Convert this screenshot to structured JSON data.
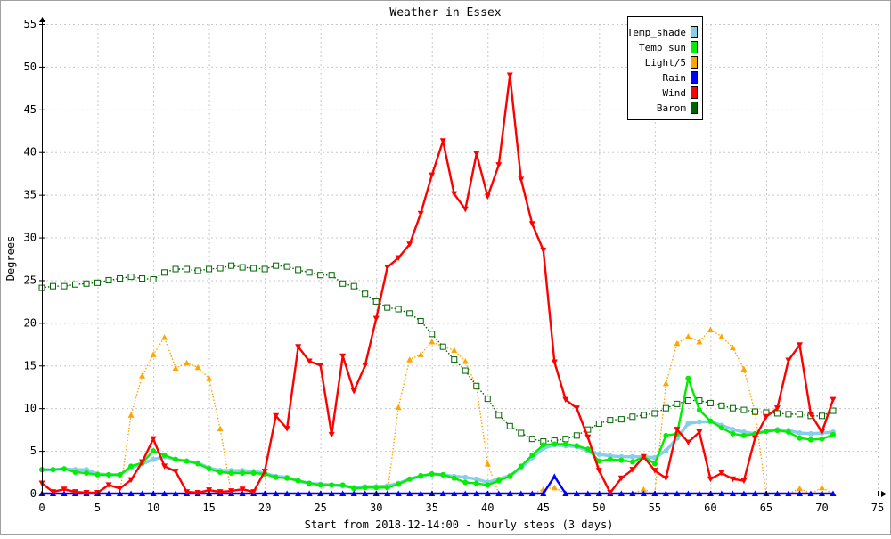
{
  "chart_data": {
    "type": "line",
    "title": "Weather in Essex",
    "xlabel": "Start from 2018-12-14:00 - hourly steps (3 days)",
    "ylabel": "Degrees",
    "xlim": [
      0,
      75
    ],
    "ylim": [
      0,
      55
    ],
    "xticks": [
      0,
      5,
      10,
      15,
      20,
      25,
      30,
      35,
      40,
      45,
      50,
      55,
      60,
      65,
      70,
      75
    ],
    "yticks": [
      0,
      5,
      10,
      15,
      20,
      25,
      30,
      35,
      40,
      45,
      50,
      55
    ],
    "grid": true,
    "legend_position": "top-right",
    "series": [
      {
        "name": "Temp_shade",
        "color": "#87ceeb",
        "marker": "circle",
        "line": "solid",
        "values": [
          2.8,
          2.8,
          2.9,
          2.8,
          2.8,
          2.3,
          2.2,
          2.2,
          3.0,
          3.5,
          4.0,
          4.3,
          4.0,
          3.8,
          3.6,
          3.0,
          2.7,
          2.7,
          2.7,
          2.6,
          2.4,
          2.0,
          1.9,
          1.5,
          1.2,
          1.1,
          1.0,
          0.9,
          0.7,
          0.8,
          0.8,
          0.9,
          1.2,
          1.7,
          2.0,
          2.3,
          2.2,
          2.0,
          1.9,
          1.7,
          1.3,
          1.7,
          2.1,
          3.0,
          4.2,
          5.3,
          5.7,
          5.6,
          5.5,
          5.0,
          4.6,
          4.4,
          4.3,
          4.3,
          4.3,
          4.2,
          5.0,
          6.5,
          8.2,
          8.4,
          8.4,
          8.0,
          7.5,
          7.2,
          7.0,
          7.3,
          7.5,
          7.4,
          7.1,
          7.0,
          7.1,
          7.2
        ]
      },
      {
        "name": "Temp_sun",
        "color": "#00ee00",
        "marker": "circle",
        "line": "solid",
        "values": [
          2.8,
          2.8,
          2.9,
          2.5,
          2.4,
          2.2,
          2.2,
          2.2,
          3.2,
          3.6,
          5.0,
          4.5,
          4.0,
          3.8,
          3.5,
          2.9,
          2.5,
          2.4,
          2.4,
          2.4,
          2.3,
          1.9,
          1.8,
          1.5,
          1.2,
          1.0,
          1.0,
          1.0,
          0.6,
          0.7,
          0.7,
          0.7,
          1.1,
          1.7,
          2.1,
          2.3,
          2.2,
          1.8,
          1.3,
          1.2,
          1.0,
          1.5,
          2.0,
          3.2,
          4.5,
          5.7,
          5.8,
          5.8,
          5.6,
          5.2,
          3.8,
          4.0,
          3.9,
          3.7,
          4.3,
          3.5,
          6.8,
          7.0,
          13.5,
          9.8,
          8.5,
          7.7,
          7.0,
          6.8,
          7.0,
          7.3,
          7.4,
          7.2,
          6.5,
          6.3,
          6.4,
          6.9
        ]
      },
      {
        "name": "Light/5",
        "color": "#ffa500",
        "marker": "triangle-up",
        "line": "dotted",
        "values": [
          0,
          0,
          0,
          0,
          0,
          0,
          0,
          0,
          9.2,
          13.8,
          16.3,
          18.3,
          14.7,
          15.3,
          14.8,
          13.5,
          7.6,
          0,
          0,
          0,
          0,
          0,
          0,
          0,
          0,
          0,
          0,
          0,
          0,
          0,
          0,
          0,
          10.1,
          15.7,
          16.3,
          17.8,
          17.2,
          16.8,
          15.5,
          12.5,
          3.5,
          0,
          0,
          0,
          0,
          0.5,
          0.7,
          0,
          0,
          0,
          0,
          0,
          0,
          0,
          0.5,
          0,
          12.9,
          17.6,
          18.4,
          17.8,
          19.2,
          18.4,
          17.1,
          14.6,
          9.5,
          0,
          0,
          0,
          0.6,
          0,
          0.7,
          0
        ]
      },
      {
        "name": "Rain",
        "color": "#0000ff",
        "marker": "triangle-up",
        "line": "solid",
        "values": [
          0,
          0,
          0,
          0,
          0,
          0,
          0,
          0,
          0,
          0,
          0,
          0,
          0,
          0,
          0,
          0,
          0,
          0,
          0,
          0,
          0,
          0,
          0,
          0,
          0,
          0,
          0,
          0,
          0,
          0,
          0,
          0,
          0,
          0,
          0,
          0,
          0,
          0,
          0,
          0,
          0,
          0,
          0,
          0,
          0,
          0,
          2.0,
          0,
          0,
          0,
          0,
          0,
          0,
          0,
          0,
          0,
          0,
          0,
          0,
          0,
          0,
          0,
          0,
          0,
          0,
          0,
          0,
          0,
          0,
          0,
          0,
          0
        ]
      },
      {
        "name": "Wind",
        "color": "#ff0000",
        "marker": "triangle-down",
        "line": "solid",
        "values": [
          1.2,
          0.2,
          0.5,
          0.2,
          0.1,
          0.1,
          1.0,
          0.6,
          1.6,
          3.7,
          6.4,
          3.2,
          2.6,
          0.2,
          0.1,
          0.4,
          0.2,
          0.3,
          0.5,
          0.2,
          2.6,
          9.1,
          7.6,
          17.2,
          15.5,
          15.0,
          6.9,
          16.1,
          12.0,
          15.0,
          20.5,
          26.5,
          27.6,
          29.2,
          32.8,
          37.3,
          41.3,
          35.1,
          33.3,
          39.8,
          34.8,
          38.5,
          49.0,
          36.8,
          31.6,
          28.5,
          15.4,
          11.0,
          10.0,
          6.6,
          2.7,
          0.1,
          1.8,
          2.8,
          4.3,
          2.7,
          1.8,
          7.5,
          6.0,
          7.2,
          1.7,
          2.4,
          1.7,
          1.5,
          6.5,
          9.0,
          10.0,
          15.6,
          17.4,
          9.3,
          7.2,
          11.0
        ]
      },
      {
        "name": "Barom",
        "color": "#006400",
        "marker": "square-open",
        "line": "dotted",
        "values": [
          24.1,
          24.3,
          24.3,
          24.5,
          24.6,
          24.7,
          25.0,
          25.2,
          25.4,
          25.2,
          25.1,
          25.9,
          26.3,
          26.3,
          26.1,
          26.3,
          26.4,
          26.7,
          26.5,
          26.4,
          26.3,
          26.7,
          26.6,
          26.2,
          25.9,
          25.6,
          25.6,
          24.6,
          24.3,
          23.4,
          22.5,
          21.8,
          21.6,
          21.1,
          20.2,
          18.7,
          17.2,
          15.7,
          14.4,
          12.6,
          11.1,
          9.2,
          7.9,
          7.1,
          6.4,
          6.1,
          6.2,
          6.4,
          6.8,
          7.5,
          8.2,
          8.6,
          8.7,
          9.0,
          9.2,
          9.4,
          10.0,
          10.5,
          10.9,
          10.9,
          10.6,
          10.3,
          10.0,
          9.8,
          9.6,
          9.5,
          9.4,
          9.3,
          9.3,
          9.1,
          9.1,
          9.7
        ]
      }
    ]
  }
}
